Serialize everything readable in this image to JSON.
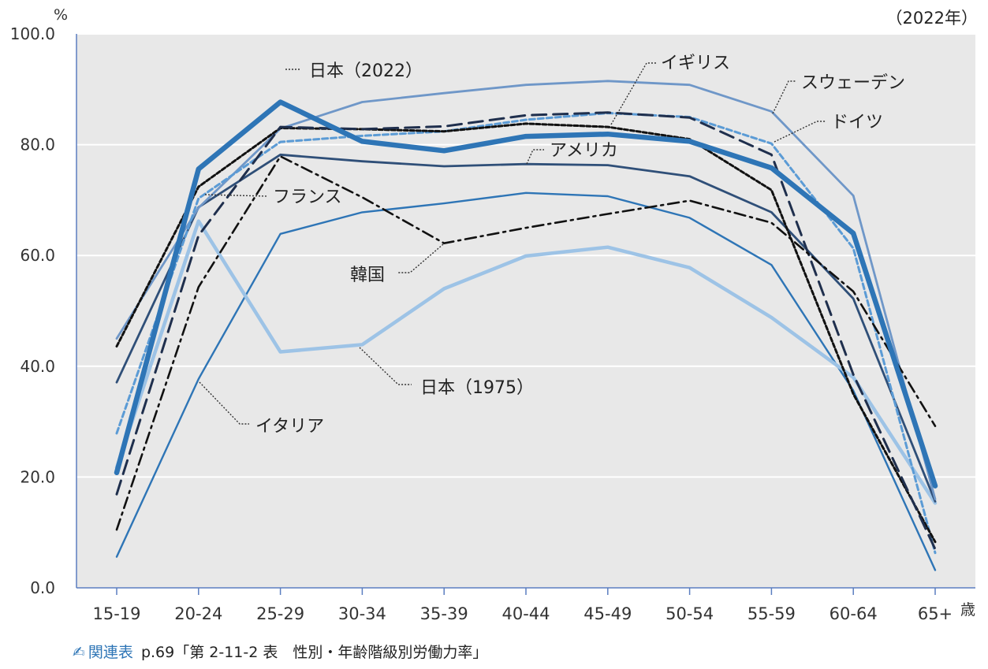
{
  "chart_data": {
    "type": "line",
    "y_unit": "%",
    "x_unit": "歳",
    "year_note": "（2022年）",
    "categories": [
      "15-19",
      "20-24",
      "25-29",
      "30-34",
      "35-39",
      "40-44",
      "45-49",
      "50-54",
      "55-59",
      "60-64",
      "65+"
    ],
    "ylim": [
      0,
      100
    ],
    "yticks": [
      "0.0",
      "20.0",
      "40.0",
      "60.0",
      "80.0",
      "100.0"
    ],
    "grid": true,
    "series": [
      {
        "name": "日本（2022）",
        "color": "#2e75b6",
        "style": "solid-thick",
        "values": [
          20.8,
          75.6,
          87.7,
          80.6,
          78.9,
          81.5,
          81.9,
          80.6,
          75.8,
          64.0,
          18.4
        ]
      },
      {
        "name": "日本（1975）",
        "color": "#9dc3e6",
        "style": "solid-light",
        "values": [
          21.7,
          66.2,
          42.6,
          43.9,
          54.0,
          59.9,
          61.5,
          57.8,
          48.8,
          38.0,
          15.3
        ]
      },
      {
        "name": "イギリス",
        "color": "#1f2f4d",
        "style": "longdash",
        "values": [
          16.9,
          63.6,
          83.2,
          82.8,
          83.3,
          85.3,
          85.8,
          84.9,
          78.2,
          38.5,
          7.0
        ]
      },
      {
        "name": "スウェーデン",
        "color": "#6f97c8",
        "style": "solid",
        "values": [
          45.0,
          68.6,
          82.9,
          87.7,
          89.3,
          90.8,
          91.5,
          90.8,
          86.0,
          70.8,
          16.0
        ]
      },
      {
        "name": "ドイツ",
        "color": "#5b9bd5",
        "style": "shortdash",
        "values": [
          27.9,
          70.3,
          80.5,
          81.6,
          82.4,
          84.5,
          85.7,
          85.0,
          80.2,
          61.3,
          6.3
        ]
      },
      {
        "name": "アメリカ",
        "color": "#2f4f78",
        "style": "solid",
        "values": [
          37.1,
          68.7,
          78.2,
          77.0,
          76.1,
          76.5,
          76.3,
          74.3,
          67.8,
          52.2,
          15.6
        ]
      },
      {
        "name": "フランス",
        "color": "#111111",
        "style": "dotdash",
        "values": [
          43.6,
          72.4,
          83.0,
          82.8,
          82.4,
          83.8,
          83.2,
          81.0,
          71.8,
          35.0,
          8.3
        ]
      },
      {
        "name": "韓国",
        "color": "#111111",
        "style": "dashdot",
        "values": [
          10.5,
          54.3,
          77.9,
          70.5,
          62.2,
          65.0,
          67.5,
          69.9,
          65.9,
          53.5,
          29.2
        ]
      },
      {
        "name": "イタリア",
        "color": "#2e75b6",
        "style": "solid-thin",
        "values": [
          5.6,
          37.7,
          63.9,
          67.8,
          69.4,
          71.3,
          70.7,
          66.8,
          58.3,
          35.6,
          3.2
        ]
      }
    ]
  },
  "footnote": {
    "icon": "✍",
    "label": "関連表",
    "text": "p.69「第 2-11-2 表　性別・年齢階級別労働力率」"
  }
}
